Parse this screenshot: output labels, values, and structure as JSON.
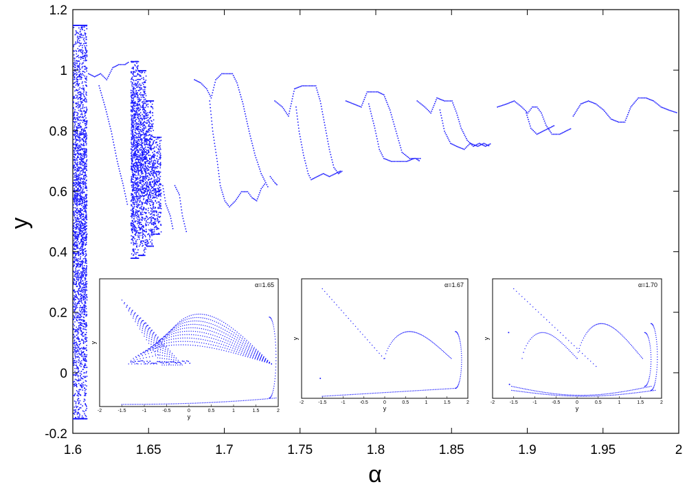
{
  "colors": {
    "points": "#1a1aff",
    "axis": "#000000",
    "background": "#ffffff"
  },
  "chart_data": [
    {
      "type": "scatter",
      "title": "",
      "xlabel": "α",
      "ylabel": "y",
      "xlim": [
        1.6,
        2.0
      ],
      "ylim": [
        -0.2,
        1.2
      ],
      "xticks": [
        1.6,
        1.65,
        1.7,
        1.75,
        1.8,
        1.85,
        1.9,
        1.95,
        2.0
      ],
      "xtick_labels": [
        "1.6",
        "1.65",
        "1.7",
        "1.75",
        "1.8",
        "1.85",
        "1.9",
        "1.95",
        "2"
      ],
      "yticks": [
        -0.2,
        0,
        0.2,
        0.4,
        0.6,
        0.8,
        1.0,
        1.2
      ],
      "ytick_labels": [
        "-0.2",
        "0",
        "0.2",
        "0.4",
        "0.6",
        "0.8",
        "1",
        "1.2"
      ],
      "grid": false,
      "series": [
        {
          "bands": [
            {
              "x": [
                1.6,
                1.609
              ],
              "y": [
                -0.15,
                1.15
              ],
              "density": 2600
            },
            {
              "x": [
                1.638,
                1.643
              ],
              "y": [
                0.38,
                1.03
              ],
              "density": 900
            },
            {
              "x": [
                1.643,
                1.648
              ],
              "y": [
                0.39,
                1.0
              ],
              "density": 700
            },
            {
              "x": [
                1.648,
                1.653
              ],
              "y": [
                0.42,
                0.9
              ],
              "density": 500
            },
            {
              "x": [
                1.653,
                1.658
              ],
              "y": [
                0.46,
                0.78
              ],
              "density": 300
            }
          ],
          "branches": [
            [
              [
                1.61,
                0.99
              ],
              [
                1.614,
                0.98
              ],
              [
                1.618,
                0.99
              ],
              [
                1.622,
                0.97
              ],
              [
                1.626,
                1.01
              ],
              [
                1.63,
                1.02
              ],
              [
                1.634,
                1.02
              ],
              [
                1.637,
                1.03
              ]
            ],
            [
              [
                1.617,
                0.95
              ],
              [
                1.621,
                0.88
              ],
              [
                1.625,
                0.8
              ],
              [
                1.629,
                0.7
              ],
              [
                1.633,
                0.62
              ],
              [
                1.636,
                0.55
              ]
            ],
            [
              [
                1.659,
                0.62
              ],
              [
                1.661,
                0.56
              ],
              [
                1.664,
                0.52
              ],
              [
                1.666,
                0.47
              ]
            ],
            [
              [
                1.667,
                0.62
              ],
              [
                1.67,
                0.59
              ],
              [
                1.672,
                0.52
              ],
              [
                1.675,
                0.46
              ]
            ],
            [
              [
                1.68,
                0.97
              ],
              [
                1.684,
                0.96
              ],
              [
                1.688,
                0.94
              ],
              [
                1.691,
                0.91
              ],
              [
                1.694,
                0.97
              ],
              [
                1.698,
                0.99
              ],
              [
                1.702,
                0.99
              ],
              [
                1.705,
                0.99
              ],
              [
                1.708,
                0.96
              ],
              [
                1.712,
                0.89
              ],
              [
                1.716,
                0.8
              ],
              [
                1.72,
                0.72
              ],
              [
                1.724,
                0.66
              ],
              [
                1.727,
                0.63
              ],
              [
                1.729,
                0.61
              ]
            ],
            [
              [
                1.69,
                0.9
              ],
              [
                1.692,
                0.8
              ],
              [
                1.695,
                0.7
              ],
              [
                1.697,
                0.62
              ],
              [
                1.7,
                0.57
              ],
              [
                1.703,
                0.55
              ],
              [
                1.707,
                0.57
              ],
              [
                1.711,
                0.6
              ],
              [
                1.715,
                0.6
              ],
              [
                1.718,
                0.58
              ],
              [
                1.721,
                0.57
              ],
              [
                1.724,
                0.61
              ],
              [
                1.727,
                0.63
              ]
            ],
            [
              [
                1.73,
                0.65
              ],
              [
                1.733,
                0.63
              ],
              [
                1.735,
                0.62
              ]
            ],
            [
              [
                1.733,
                0.9
              ],
              [
                1.738,
                0.88
              ],
              [
                1.742,
                0.85
              ],
              [
                1.746,
                0.94
              ],
              [
                1.751,
                0.95
              ],
              [
                1.756,
                0.95
              ],
              [
                1.76,
                0.95
              ],
              [
                1.763,
                0.9
              ],
              [
                1.766,
                0.82
              ],
              [
                1.769,
                0.74
              ],
              [
                1.772,
                0.68
              ],
              [
                1.775,
                0.66
              ],
              [
                1.778,
                0.67
              ]
            ],
            [
              [
                1.747,
                0.88
              ],
              [
                1.749,
                0.8
              ],
              [
                1.752,
                0.72
              ],
              [
                1.755,
                0.66
              ],
              [
                1.757,
                0.64
              ],
              [
                1.761,
                0.65
              ],
              [
                1.765,
                0.66
              ],
              [
                1.769,
                0.65
              ],
              [
                1.773,
                0.66
              ],
              [
                1.777,
                0.67
              ]
            ],
            [
              [
                1.78,
                0.9
              ],
              [
                1.785,
                0.89
              ],
              [
                1.79,
                0.88
              ],
              [
                1.794,
                0.93
              ],
              [
                1.798,
                0.93
              ],
              [
                1.801,
                0.93
              ],
              [
                1.805,
                0.92
              ],
              [
                1.809,
                0.87
              ],
              [
                1.813,
                0.8
              ],
              [
                1.817,
                0.73
              ],
              [
                1.822,
                0.71
              ],
              [
                1.826,
                0.71
              ],
              [
                1.829,
                0.7
              ]
            ],
            [
              [
                1.795,
                0.89
              ],
              [
                1.799,
                0.81
              ],
              [
                1.802,
                0.74
              ],
              [
                1.805,
                0.71
              ],
              [
                1.81,
                0.7
              ],
              [
                1.815,
                0.7
              ],
              [
                1.82,
                0.7
              ],
              [
                1.825,
                0.71
              ],
              [
                1.83,
                0.71
              ]
            ],
            [
              [
                1.827,
                0.9
              ],
              [
                1.832,
                0.88
              ],
              [
                1.836,
                0.86
              ],
              [
                1.84,
                0.91
              ],
              [
                1.845,
                0.9
              ],
              [
                1.85,
                0.9
              ],
              [
                1.853,
                0.86
              ],
              [
                1.856,
                0.81
              ],
              [
                1.86,
                0.77
              ],
              [
                1.864,
                0.75
              ],
              [
                1.868,
                0.76
              ],
              [
                1.872,
                0.75
              ],
              [
                1.876,
                0.76
              ]
            ],
            [
              [
                1.842,
                0.87
              ],
              [
                1.845,
                0.8
              ],
              [
                1.849,
                0.76
              ],
              [
                1.853,
                0.75
              ],
              [
                1.858,
                0.74
              ],
              [
                1.862,
                0.76
              ],
              [
                1.867,
                0.75
              ],
              [
                1.871,
                0.76
              ],
              [
                1.875,
                0.75
              ]
            ],
            [
              [
                1.88,
                0.88
              ],
              [
                1.886,
                0.89
              ],
              [
                1.891,
                0.9
              ],
              [
                1.896,
                0.88
              ],
              [
                1.9,
                0.86
              ],
              [
                1.903,
                0.88
              ],
              [
                1.906,
                0.88
              ],
              [
                1.909,
                0.86
              ],
              [
                1.912,
                0.82
              ],
              [
                1.916,
                0.79
              ],
              [
                1.921,
                0.79
              ],
              [
                1.925,
                0.8
              ],
              [
                1.929,
                0.81
              ]
            ],
            [
              [
                1.899,
                0.86
              ],
              [
                1.902,
                0.81
              ],
              [
                1.906,
                0.79
              ],
              [
                1.91,
                0.8
              ],
              [
                1.914,
                0.81
              ],
              [
                1.918,
                0.82
              ]
            ],
            [
              [
                1.93,
                0.85
              ],
              [
                1.935,
                0.89
              ],
              [
                1.94,
                0.9
              ],
              [
                1.945,
                0.89
              ],
              [
                1.95,
                0.87
              ],
              [
                1.955,
                0.84
              ],
              [
                1.96,
                0.83
              ],
              [
                1.964,
                0.83
              ],
              [
                1.968,
                0.88
              ],
              [
                1.973,
                0.91
              ],
              [
                1.978,
                0.91
              ],
              [
                1.983,
                0.9
              ],
              [
                1.988,
                0.88
              ],
              [
                1.993,
                0.87
              ],
              [
                1.999,
                0.86
              ]
            ]
          ]
        }
      ]
    },
    {
      "type": "scatter",
      "annotation": "α=1.65",
      "xlabel": "y",
      "ylabel": "y",
      "xlim": [
        -2,
        2
      ],
      "ylim": [
        -2,
        4
      ],
      "xticks": [
        -2,
        -1.5,
        -1,
        -0.5,
        0,
        0.5,
        1,
        1.5,
        2
      ],
      "xtick_labels": [
        "-2",
        "-1.5",
        "-1",
        "-0.5",
        "0",
        "0.5",
        "1",
        "1.5",
        "2"
      ],
      "series": [
        {
          "pattern": "torus",
          "alpha": 1.65
        }
      ]
    },
    {
      "type": "scatter",
      "annotation": "α=1.67",
      "xlabel": "y",
      "ylabel": "y",
      "xlim": [
        -2,
        2
      ],
      "ylim": [
        -2,
        4
      ],
      "xticks": [
        -2,
        -1.5,
        -1,
        -0.5,
        0,
        0.5,
        1,
        1.5,
        2
      ],
      "xtick_labels": [
        "-2",
        "-1.5",
        "-1",
        "-0.5",
        "0",
        "0.5",
        "1",
        "1.5",
        "2"
      ],
      "series": [
        {
          "pattern": "single-loop",
          "alpha": 1.67
        }
      ]
    },
    {
      "type": "scatter",
      "annotation": "α=1.70",
      "xlabel": "y",
      "ylabel": "y",
      "xlim": [
        -2,
        2
      ],
      "ylim": [
        -2,
        4
      ],
      "xticks": [
        -2,
        -1.5,
        -1,
        -0.5,
        0,
        0.5,
        1,
        1.5,
        2
      ],
      "xtick_labels": [
        "-2",
        "-1.5",
        "-1",
        "-0.5",
        "0",
        "0.5",
        "1",
        "1.5",
        "2"
      ],
      "series": [
        {
          "pattern": "double-loop",
          "alpha": 1.7
        }
      ]
    }
  ]
}
